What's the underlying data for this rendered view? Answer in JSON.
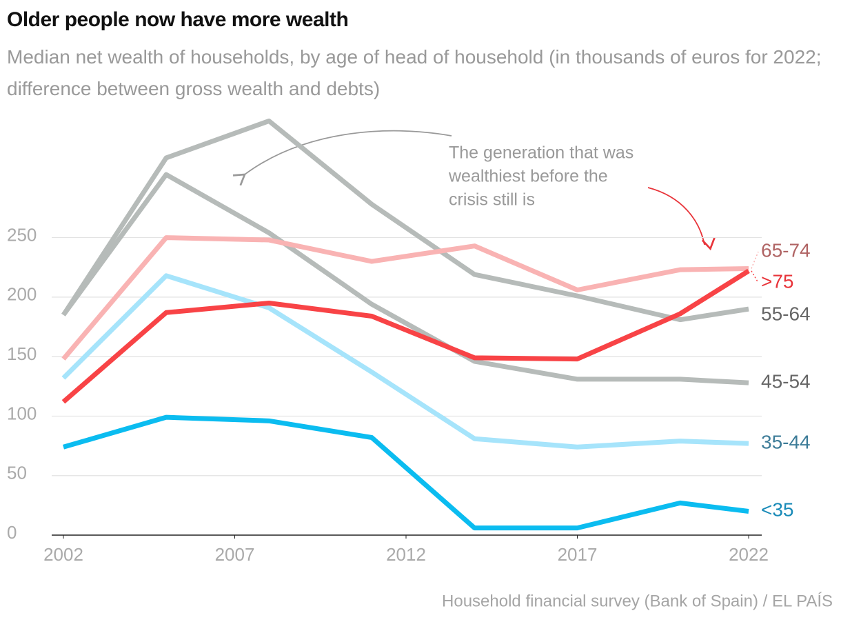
{
  "chart_data": {
    "type": "line",
    "title": "Older people now have more wealth",
    "subtitle": "Median net wealth of households, by age of head of household (in thousands of euros for 2022; difference between gross wealth and debts)",
    "annotation": [
      "The generation that was",
      "wealthiest before the",
      "crisis still is"
    ],
    "source": "Household financial survey (Bank of Spain) / EL PAÍS",
    "x": [
      2002,
      2005,
      2008,
      2011,
      2014,
      2017,
      2020,
      2022
    ],
    "xlim": [
      2002,
      2022
    ],
    "xticks": [
      2002,
      2007,
      2012,
      2017,
      2022
    ],
    "ylim": [
      0,
      350
    ],
    "yticks": [
      0,
      50,
      100,
      150,
      200,
      250
    ],
    "grid": true,
    "series": [
      {
        "name": "55-64",
        "color": "#b6bbb9",
        "label_color": "#666666",
        "values": [
          185,
          317,
          348,
          278,
          219,
          201,
          181,
          190
        ]
      },
      {
        "name": "45-54",
        "color": "#b6bbb9",
        "label_color": "#666666",
        "values": [
          185,
          303,
          254,
          194,
          146,
          131,
          131,
          128
        ]
      },
      {
        "name": "65-74",
        "color": "#f9b3b3",
        "label_color": "#b06464",
        "values": [
          148,
          250,
          248,
          230,
          243,
          206,
          223,
          224
        ]
      },
      {
        "name": "35-44",
        "color": "#a6e4fb",
        "label_color": "#3d7c98",
        "values": [
          132,
          218,
          191,
          137,
          81,
          74,
          79,
          77
        ]
      },
      {
        "name": "<35",
        "color": "#0bbcf0",
        "label_color": "#1a8bb8",
        "values": [
          74,
          99,
          96,
          82,
          6,
          6,
          27,
          20
        ]
      },
      {
        "name": ">75",
        "color": "#f84346",
        "label_color": "#e8343a",
        "values": [
          112,
          187,
          195,
          184,
          149,
          148,
          186,
          222
        ]
      }
    ]
  }
}
